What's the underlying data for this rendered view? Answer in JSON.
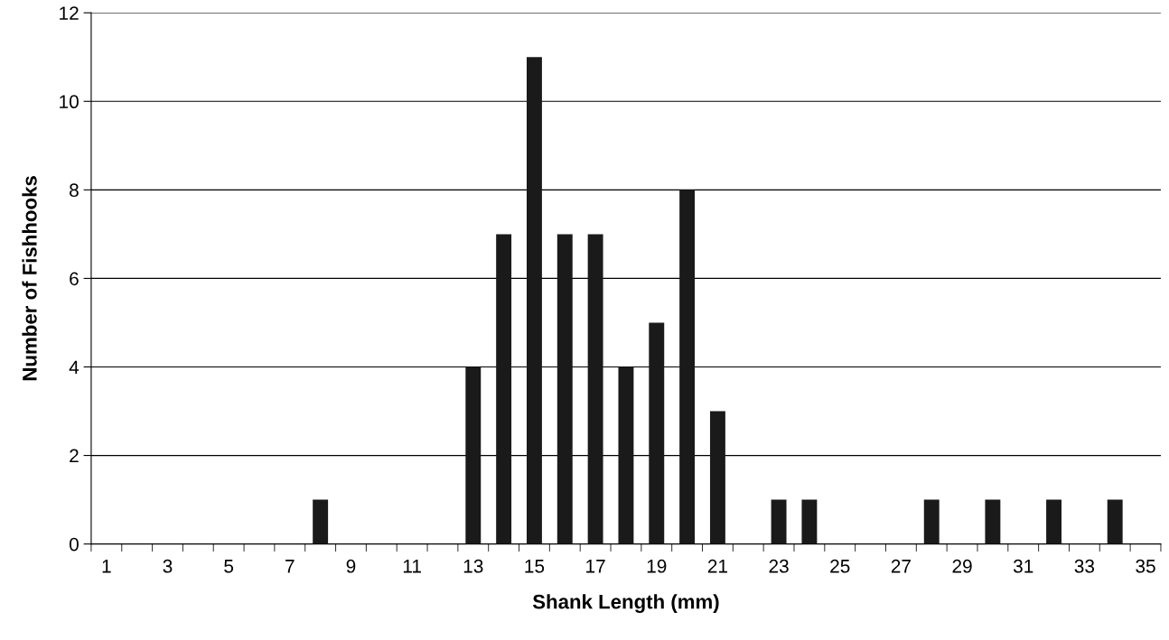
{
  "chart_data": {
    "type": "bar",
    "xlabel": "Shank Length (mm)",
    "ylabel": "Number of Fishhooks",
    "categories": [
      "1",
      null,
      "3",
      null,
      "5",
      null,
      "7",
      null,
      "9",
      null,
      "11",
      null,
      "13",
      null,
      "15",
      null,
      "17",
      null,
      "19",
      null,
      "21",
      null,
      "23",
      null,
      "25",
      null,
      "27",
      null,
      "29",
      null,
      "31",
      null,
      "33",
      null,
      "35"
    ],
    "values": [
      0,
      0,
      0,
      0,
      0,
      0,
      0,
      1,
      0,
      0,
      0,
      0,
      4,
      7,
      11,
      7,
      7,
      4,
      5,
      8,
      3,
      0,
      1,
      1,
      0,
      0,
      0,
      1,
      0,
      1,
      0,
      1,
      0,
      1,
      0
    ],
    "color": "#1a1a1a",
    "ylim": [
      0,
      12
    ],
    "yticks": [
      0,
      2,
      4,
      6,
      8,
      10,
      12
    ],
    "grid": "y",
    "legend": false
  }
}
